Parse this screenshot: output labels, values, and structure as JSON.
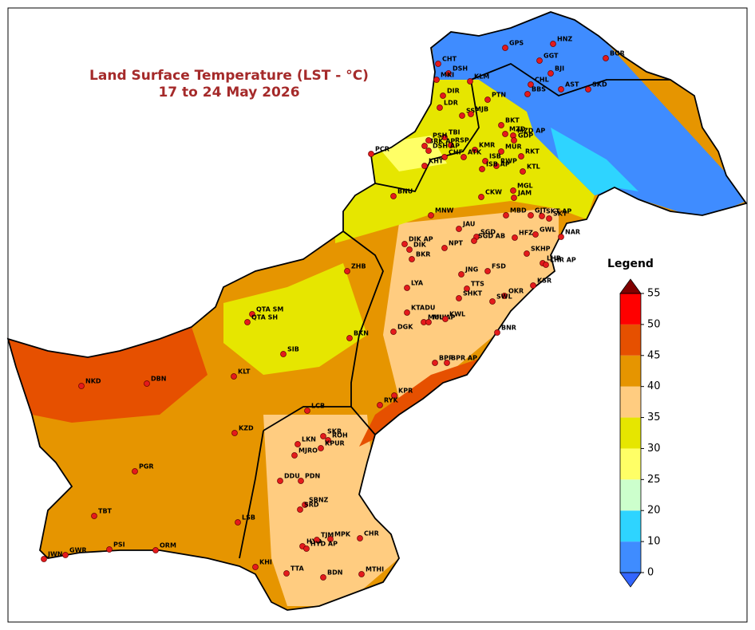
{
  "title": [
    "Land Surface Temperature (LST - °C)",
    "17 to 24 May 2026"
  ],
  "legend": {
    "title": "Legend",
    "ticks": [
      0,
      10,
      20,
      25,
      30,
      35,
      40,
      45,
      50,
      55
    ],
    "colors": [
      "#3f8cff",
      "#2ed4ff",
      "#ccffcc",
      "#ffff66",
      "#e6e600",
      "#ffcc80",
      "#e69500",
      "#e65000",
      "#ff0000"
    ],
    "under_color": "#3366ff",
    "over_color": "#800000"
  },
  "stations": [
    "GPS",
    "HNZ",
    "BGR",
    "CHT",
    "DSH",
    "GGT",
    "MKI",
    "KLM",
    "BJI",
    "CHL",
    "AST",
    "SKD",
    "DIR",
    "BBS",
    "PTN",
    "LDR",
    "SSF",
    "MJB",
    "BKT",
    "MZD",
    "MZD AP",
    "TBI",
    "RSP",
    "BRK AP",
    "PSH",
    "KMR",
    "GDP",
    "DSH AP",
    "MUR",
    "PCR",
    "ATK",
    "CHF",
    "ISB",
    "RKT",
    "RWP",
    "ISB AP",
    "KHT",
    "KTL",
    "BNU",
    "CKW",
    "MGL",
    "JAM",
    "GJT",
    "SKT AP",
    "SKT",
    "MNW",
    "MBD",
    "JAU",
    "SGD",
    "SGD AB",
    "NAR",
    "GWL",
    "HFZ",
    "DIK AP",
    "DIK",
    "NPT",
    "BKR",
    "SKHP",
    "LHR",
    "LHR AP",
    "FSD",
    "JNG",
    "ZHB",
    "LYA",
    "KSR",
    "TTS",
    "SHKT",
    "OKR",
    "SWL",
    "QTA SM",
    "QTA SH",
    "KTADU",
    "MUL AP",
    "MUL",
    "KWL",
    "DGK",
    "BKN",
    "BNR",
    "SIB",
    "BPR",
    "BPR AP",
    "KLT",
    "NKD",
    "DBN",
    "KPR",
    "RYK",
    "LCB",
    "KZD",
    "SKR",
    "ROH",
    "LKN",
    "KPUR",
    "MJRO",
    "PGR",
    "DDU",
    "PDN",
    "SBNZ",
    "SRD",
    "TBT",
    "LSB",
    "HYD",
    "TJM",
    "MPK",
    "HYD AP",
    "CHR",
    "JWN",
    "GWR",
    "PSI",
    "ORM",
    "KHI",
    "TTA",
    "BDN",
    "MTHI"
  ]
}
